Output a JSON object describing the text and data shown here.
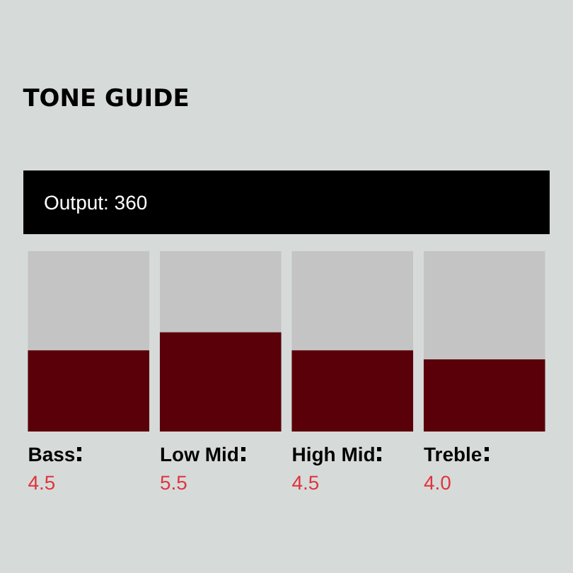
{
  "chart_data": {
    "type": "bar",
    "title": "TONE GUIDE",
    "annotations": [
      "Output: 360"
    ],
    "categories": [
      "Bass",
      "Low Mid",
      "High Mid",
      "Treble"
    ],
    "values": [
      4.5,
      5.5,
      4.5,
      4.0
    ],
    "value_labels": [
      "4.5",
      "5.5",
      "4.5",
      "4.0"
    ],
    "color": "#5a0008",
    "ylim": [
      0,
      10
    ],
    "tick_labels": "x",
    "grid": false
  }
}
